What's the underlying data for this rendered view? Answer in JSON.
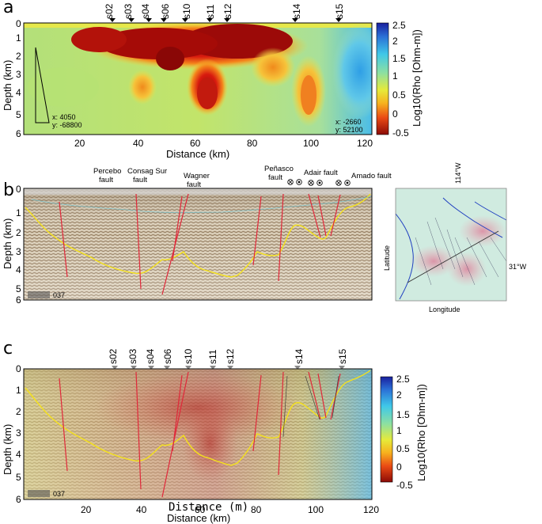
{
  "panels": {
    "a": {
      "label": "a",
      "stations": [
        "s02",
        "s03",
        "s04",
        "s06",
        "s10",
        "s11",
        "s12",
        "s14",
        "s15"
      ],
      "x_ticks": [
        "20",
        "40",
        "60",
        "80",
        "100",
        "120"
      ],
      "y_ticks": [
        "0",
        "1",
        "2",
        "3",
        "4",
        "5",
        "6"
      ],
      "xlabel": "Distance (km)",
      "ylabel": "Depth (km)",
      "annot_left": {
        "x": "x:  4050",
        "y": "y:  -68800"
      },
      "annot_right": {
        "x": "x:  -2660",
        "y": "y:  52100"
      },
      "colorbar": {
        "label": "Log10(Rho [Ohm-m])",
        "ticks": [
          "2.5",
          "2",
          "1.5",
          "1",
          "0.5",
          "0",
          "-0.5"
        ]
      }
    },
    "b": {
      "label": "b",
      "faults": [
        {
          "name": "Percebo",
          "suffix": "fault"
        },
        {
          "name": "Consag Sur",
          "suffix": "fault"
        },
        {
          "name": "Wagner",
          "suffix": "fault"
        },
        {
          "name": "Peñasco",
          "suffix": "fault"
        },
        {
          "name": "Adair fault",
          "suffix": ""
        },
        {
          "name": "Amado fault",
          "suffix": ""
        }
      ],
      "y_ticks": [
        "0",
        "1",
        "2",
        "3",
        "4",
        "5",
        "6"
      ],
      "ylabel": "Depth (km)",
      "scale_text": "037",
      "map": {
        "top_label": "114°W",
        "right_label": "31°W",
        "xlabel": "Longitude",
        "ylabel": "Latitude"
      }
    },
    "c": {
      "label": "c",
      "stations": [
        "s02",
        "s03",
        "s04",
        "s06",
        "s10",
        "s11",
        "s12",
        "s14",
        "s15"
      ],
      "x_ticks": [
        "20",
        "40",
        "60",
        "80",
        "100",
        "120"
      ],
      "y_ticks": [
        "0",
        "1",
        "2",
        "3",
        "4",
        "5",
        "6"
      ],
      "xlabel": "Distance (km)",
      "xlabel_overlay": "Distance (m)",
      "ylabel": "Depth (km)",
      "scale_text": "037",
      "colorbar": {
        "label": "Log10(Rho [Ohm-m])",
        "ticks": [
          "2.5",
          "2",
          "1.5",
          "1",
          "0.5",
          "0",
          "-0.5"
        ]
      }
    }
  }
}
